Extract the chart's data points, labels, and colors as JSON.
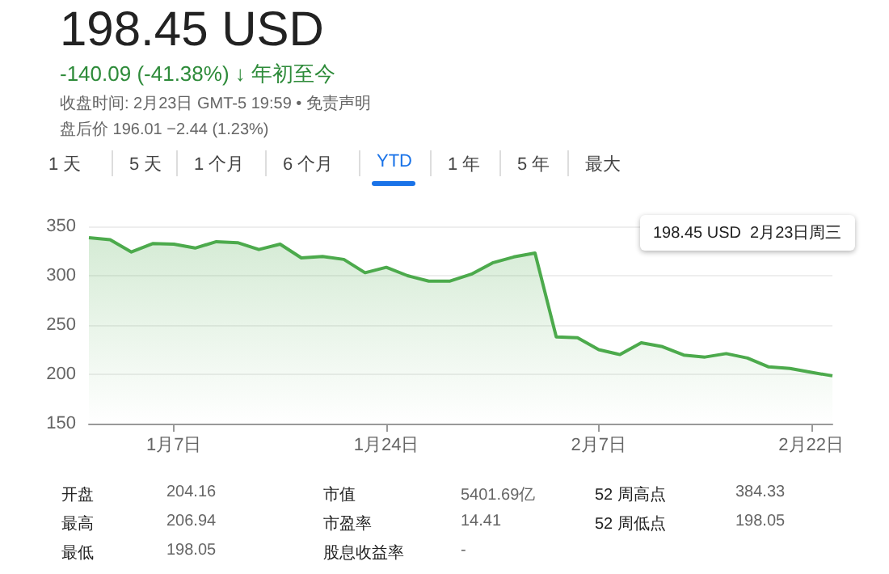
{
  "chart_data": [
    {
      "type": "area",
      "title": "198.45 USD",
      "subtitle": "-140.09 (-41.38%) ↓ 年初至今",
      "annotations": [
        "收盘时间: 2月23日 GMT-5 19:59 • 免责声明",
        "盘后价 196.01 −2.44 (1.23%)",
        "1 天",
        "5 天",
        "1 个月",
        "6 个月",
        "YTD",
        "1 年",
        "5 年",
        "最大",
        "198.45 USD  2月23日周三"
      ],
      "categories": [
        null,
        null,
        null,
        null,
        "1月7日",
        null,
        null,
        null,
        null,
        null,
        null,
        null,
        null,
        null,
        "1月24日",
        null,
        null,
        null,
        null,
        null,
        null,
        null,
        null,
        null,
        "2月7日",
        null,
        null,
        null,
        null,
        null,
        null,
        null,
        null,
        null,
        "2月22日",
        null
      ],
      "values": [
        338.5,
        336.5,
        324,
        332.5,
        332,
        328,
        334.5,
        333.5,
        326.5,
        332,
        318,
        319.5,
        316.5,
        303,
        308.5,
        300,
        294.5,
        294.5,
        301.5,
        313,
        319,
        323,
        238,
        237,
        225,
        220,
        232,
        228,
        219.5,
        217.5,
        221,
        216.5,
        207.5,
        206,
        202,
        198.45
      ],
      "color": "#4caa4c",
      "ylim": [
        150,
        350
      ],
      "yticks": [
        150,
        200,
        250,
        300,
        350
      ],
      "grid": "y"
    },
    {
      "type": "other",
      "annotations": [
        "开盘",
        "204.16",
        "最高",
        "206.94",
        "最低",
        "198.05",
        "市值",
        "5401.69亿",
        "市盈率",
        "14.41",
        "股息收益率",
        "-",
        "52 周高点",
        "384.33",
        "52 周低点",
        "198.05"
      ]
    }
  ]
}
